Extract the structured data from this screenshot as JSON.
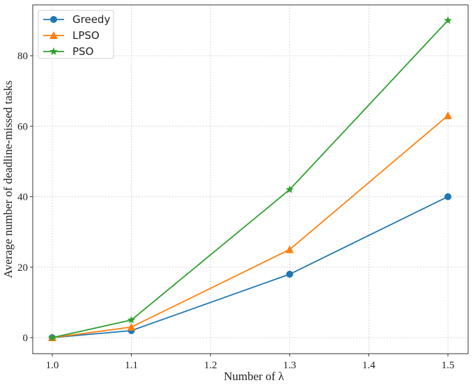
{
  "chart_data": {
    "type": "line",
    "title": "",
    "xlabel": "Number of λ",
    "ylabel": "Average number of deadline-missed tasks",
    "x": [
      1.0,
      1.1,
      1.3,
      1.5
    ],
    "series": [
      {
        "name": "Greedy",
        "values": [
          0,
          2,
          18,
          40
        ],
        "color": "#1f77b4",
        "marker": "circle"
      },
      {
        "name": "LPSO",
        "values": [
          0,
          3,
          25,
          63
        ],
        "color": "#ff7f0e",
        "marker": "triangle"
      },
      {
        "name": "PSO",
        "values": [
          0,
          5,
          42,
          90
        ],
        "color": "#2ca02c",
        "marker": "star"
      }
    ],
    "xlim": [
      0.975,
      1.525
    ],
    "ylim": [
      -4.5,
      94.5
    ],
    "xticks": [
      "1.0",
      "1.1",
      "1.2",
      "1.3",
      "1.4",
      "1.5"
    ],
    "yticks": [
      "0",
      "20",
      "40",
      "60",
      "80"
    ],
    "grid": true,
    "legend_position": "upper left"
  }
}
